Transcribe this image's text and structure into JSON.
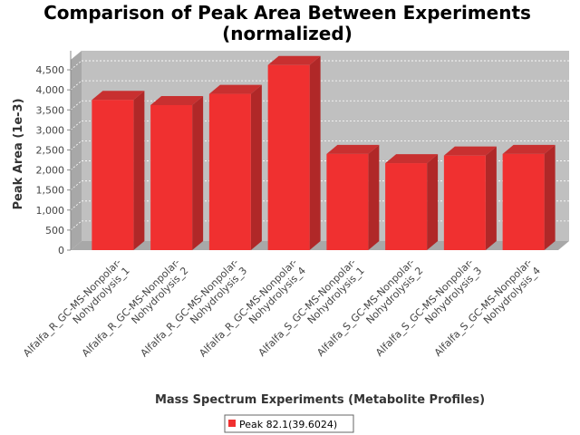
{
  "chart_data": {
    "type": "bar",
    "title_lines": [
      "Comparison of Peak Area Between Experiments",
      "(normalized)"
    ],
    "xlabel": "Mass Spectrum Experiments (Metabolite Profiles)",
    "ylabel": "Peak Area (1e-3)",
    "ylim": [
      0,
      4750
    ],
    "yticks": [
      "0",
      "500",
      "1,000",
      "1,500",
      "2,000",
      "2,500",
      "3,000",
      "3,500",
      "4,000",
      "4,500"
    ],
    "ytick_values": [
      0,
      500,
      1000,
      1500,
      2000,
      2500,
      3000,
      3500,
      4000,
      4500
    ],
    "categories": [
      [
        "Alfalfa_R_GC-MS-Nonpolar-",
        "Nohydrolysis_1"
      ],
      [
        "Alfalfa_R_GC-MS-Nonpolar-",
        "Nohydrolysis_2"
      ],
      [
        "Alfalfa_R_GC-MS-Nonpolar-",
        "Nohydrolysis_3"
      ],
      [
        "Alfalfa_R_GC-MS-Nonpolar-",
        "Nohydrolysis_4"
      ],
      [
        "Alfalfa_S_GC-MS-Nonpolar-",
        "Nohydrolysis_1"
      ],
      [
        "Alfalfa_S_GC-MS-Nonpolar-",
        "Nohydrolysis_2"
      ],
      [
        "Alfalfa_S_GC-MS-Nonpolar-",
        "Nohydrolysis_3"
      ],
      [
        "Alfalfa_S_GC-MS-Nonpolar-",
        "Nohydrolysis_4"
      ]
    ],
    "series": [
      {
        "name": "Peak 82.1(39.6024)",
        "color": "#f03030",
        "values": [
          3750,
          3620,
          3900,
          4620,
          2400,
          2170,
          2360,
          2400
        ]
      }
    ],
    "grid": true,
    "legend_position": "bottom-center",
    "plot_background": "#c0c0c0"
  }
}
